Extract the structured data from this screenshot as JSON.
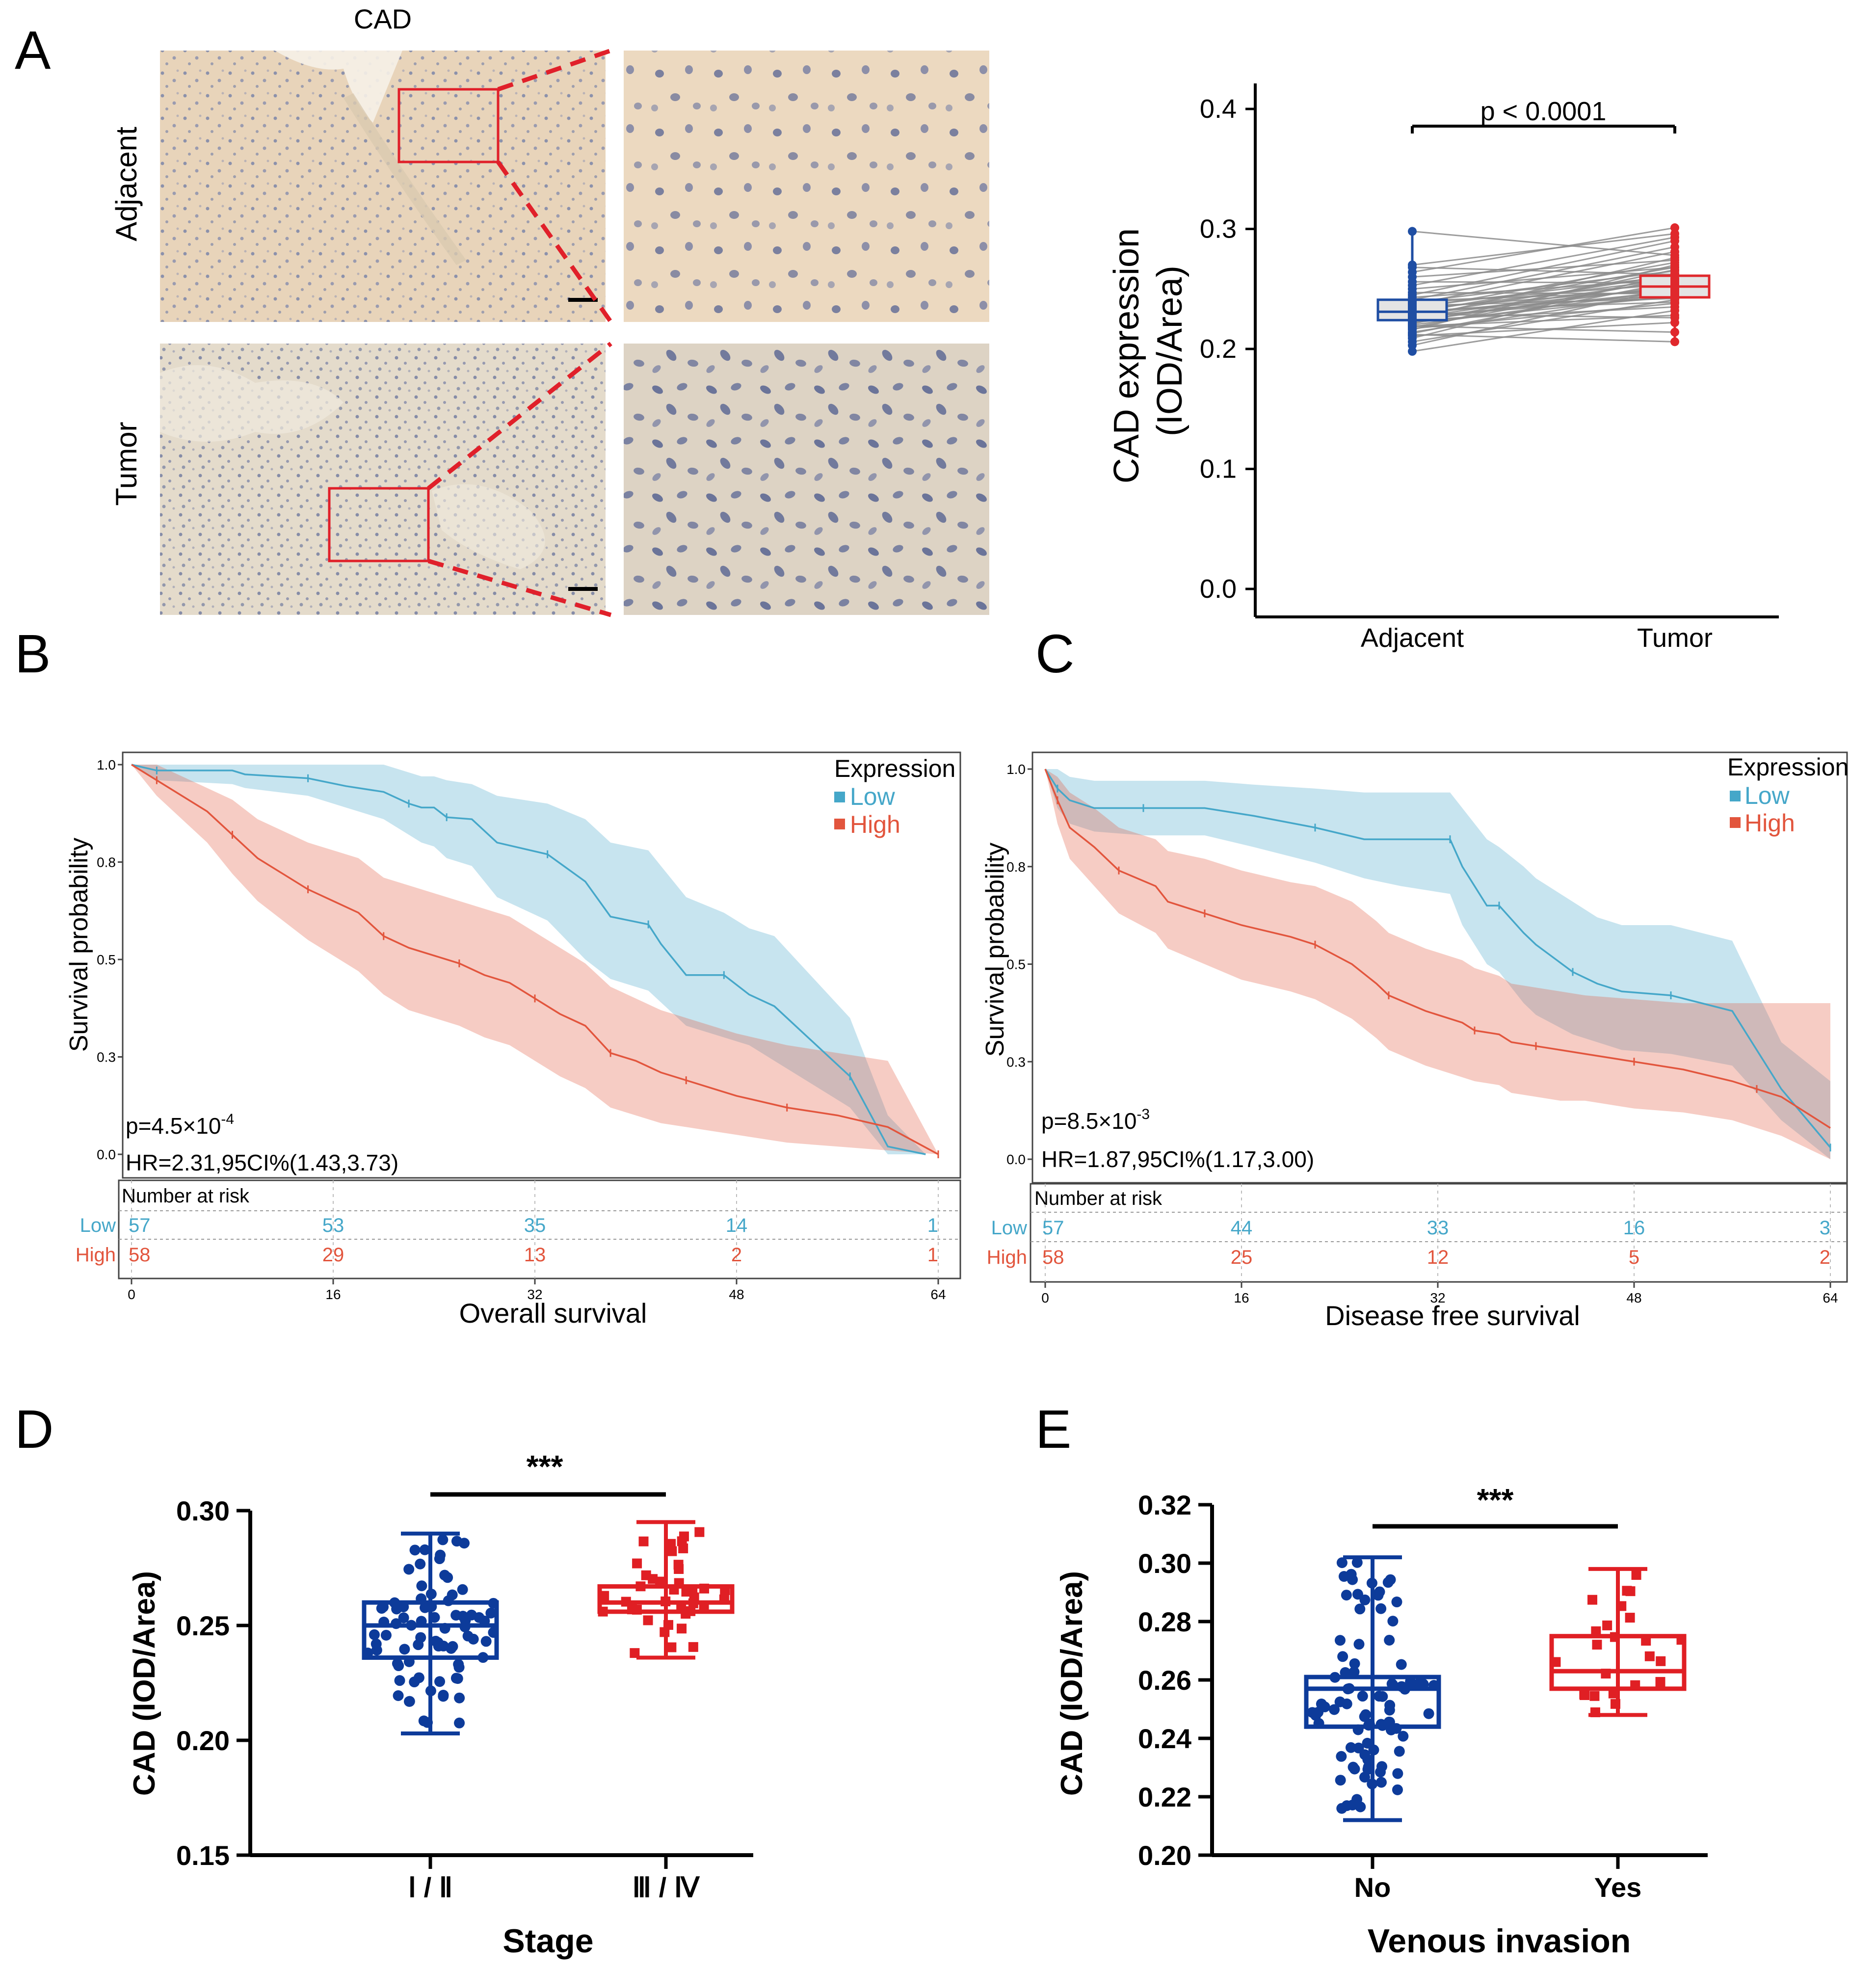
{
  "panel_labels": {
    "A": "A",
    "B": "B",
    "C": "C",
    "D": "D",
    "E": "E"
  },
  "colors": {
    "low": "#45a7c9",
    "high": "#e2553d",
    "adjacent": "#1f4ea3",
    "tumor": "#e0282c",
    "dark_blue": "#0d3b9a",
    "red": "#e01f24",
    "grey": "#8c8c8c"
  },
  "histology": {
    "title": "CAD",
    "row_labels": [
      "Adjacent",
      "Tumor"
    ],
    "images": [
      "adjacent-overview",
      "adjacent-zoom",
      "tumor-overview",
      "tumor-zoom"
    ]
  },
  "chart_data": [
    {
      "id": "A-right",
      "type": "box-paired",
      "ylabel_line1": "CAD expression",
      "ylabel_line2": "(IOD/Area)",
      "categories": [
        "Adjacent",
        "Tumor"
      ],
      "ylim": [
        0.0,
        0.4
      ],
      "yticks": [
        "0.0",
        "0.1",
        "0.2",
        "0.3",
        "0.4"
      ],
      "pvalue": "p < 0.0001",
      "boxes": [
        {
          "name": "Adjacent",
          "q1": 0.224,
          "median": 0.231,
          "q3": 0.241,
          "min": 0.198,
          "max": 0.298
        },
        {
          "name": "Tumor",
          "q1": 0.243,
          "median": 0.252,
          "q3": 0.261,
          "min": 0.206,
          "max": 0.301
        }
      ],
      "pairs": [
        [
          0.198,
          0.232
        ],
        [
          0.203,
          0.251
        ],
        [
          0.206,
          0.241
        ],
        [
          0.209,
          0.263
        ],
        [
          0.211,
          0.222
        ],
        [
          0.213,
          0.256
        ],
        [
          0.214,
          0.247
        ],
        [
          0.216,
          0.27
        ],
        [
          0.217,
          0.238
        ],
        [
          0.218,
          0.259
        ],
        [
          0.219,
          0.228
        ],
        [
          0.22,
          0.249
        ],
        [
          0.221,
          0.266
        ],
        [
          0.222,
          0.244
        ],
        [
          0.223,
          0.253
        ],
        [
          0.224,
          0.235
        ],
        [
          0.225,
          0.276
        ],
        [
          0.226,
          0.248
        ],
        [
          0.226,
          0.257
        ],
        [
          0.227,
          0.243
        ],
        [
          0.228,
          0.262
        ],
        [
          0.229,
          0.251
        ],
        [
          0.229,
          0.226
        ],
        [
          0.23,
          0.268
        ],
        [
          0.231,
          0.245
        ],
        [
          0.232,
          0.258
        ],
        [
          0.232,
          0.239
        ],
        [
          0.233,
          0.272
        ],
        [
          0.234,
          0.25
        ],
        [
          0.235,
          0.261
        ],
        [
          0.236,
          0.242
        ],
        [
          0.237,
          0.281
        ],
        [
          0.238,
          0.254
        ],
        [
          0.239,
          0.265
        ],
        [
          0.24,
          0.248
        ],
        [
          0.241,
          0.285
        ],
        [
          0.243,
          0.258
        ],
        [
          0.245,
          0.29
        ],
        [
          0.247,
          0.246
        ],
        [
          0.25,
          0.268
        ],
        [
          0.253,
          0.293
        ],
        [
          0.256,
          0.255
        ],
        [
          0.26,
          0.274
        ],
        [
          0.264,
          0.301
        ],
        [
          0.268,
          0.262
        ],
        [
          0.27,
          0.296
        ],
        [
          0.298,
          0.278
        ],
        [
          0.212,
          0.206
        ],
        [
          0.219,
          0.214
        ]
      ]
    },
    {
      "id": "B",
      "type": "km-survival",
      "xlabel": "Overall survival",
      "ylabel": "Survival probability",
      "xlim": [
        0,
        64
      ],
      "ylim": [
        0.0,
        1.0
      ],
      "xticks": [
        "0",
        "16",
        "32",
        "48",
        "64"
      ],
      "yticks": [
        "0.0",
        "0.3",
        "0.5",
        "0.8",
        "1.0"
      ],
      "legend_title": "Expression",
      "p_base": "p=4.5×10",
      "p_exp": "-4",
      "hr": "HR=2.31,95CI%(1.43,3.73)",
      "risk_title": "Number at risk",
      "series": [
        {
          "name": "Low",
          "x": [
            0,
            2,
            8,
            9,
            14,
            17,
            20,
            22,
            23,
            24,
            25,
            27,
            29,
            33,
            36,
            38,
            41,
            42,
            44,
            47,
            49,
            51,
            57,
            60,
            63
          ],
          "y": [
            1.0,
            0.985,
            0.985,
            0.975,
            0.965,
            0.945,
            0.93,
            0.9,
            0.89,
            0.89,
            0.865,
            0.86,
            0.8,
            0.77,
            0.7,
            0.61,
            0.59,
            0.54,
            0.46,
            0.46,
            0.41,
            0.38,
            0.2,
            0.02,
            0.0
          ],
          "lower": [
            1.0,
            0.96,
            0.95,
            0.94,
            0.92,
            0.89,
            0.86,
            0.82,
            0.8,
            0.79,
            0.76,
            0.74,
            0.66,
            0.6,
            0.5,
            0.45,
            0.42,
            0.39,
            0.33,
            0.3,
            0.28,
            0.24,
            0.12,
            0.0,
            0.0
          ],
          "upper": [
            1.0,
            1.0,
            1.0,
            1.0,
            1.0,
            1.0,
            1.0,
            0.98,
            0.97,
            0.97,
            0.96,
            0.95,
            0.92,
            0.9,
            0.86,
            0.8,
            0.78,
            0.74,
            0.66,
            0.62,
            0.58,
            0.56,
            0.35,
            0.1,
            0.0
          ],
          "risk": [
            "57",
            "53",
            "35",
            "14",
            "1"
          ]
        },
        {
          "name": "High",
          "x": [
            0,
            2,
            4,
            6,
            8,
            10,
            12,
            14,
            16,
            18,
            20,
            22,
            24,
            26,
            28,
            30,
            32,
            34,
            36,
            38,
            40,
            42,
            44,
            46,
            48,
            52,
            56,
            60,
            64
          ],
          "y": [
            1.0,
            0.96,
            0.92,
            0.88,
            0.82,
            0.76,
            0.72,
            0.68,
            0.65,
            0.62,
            0.56,
            0.53,
            0.51,
            0.49,
            0.46,
            0.44,
            0.4,
            0.36,
            0.33,
            0.26,
            0.24,
            0.21,
            0.19,
            0.17,
            0.15,
            0.12,
            0.1,
            0.07,
            0.0
          ],
          "lower": [
            1.0,
            0.92,
            0.86,
            0.8,
            0.72,
            0.65,
            0.6,
            0.55,
            0.51,
            0.47,
            0.41,
            0.37,
            0.35,
            0.33,
            0.3,
            0.28,
            0.24,
            0.2,
            0.17,
            0.12,
            0.1,
            0.08,
            0.07,
            0.06,
            0.05,
            0.03,
            0.02,
            0.01,
            0.0
          ],
          "upper": [
            1.0,
            1.0,
            0.97,
            0.94,
            0.91,
            0.86,
            0.83,
            0.8,
            0.78,
            0.76,
            0.71,
            0.69,
            0.67,
            0.65,
            0.63,
            0.61,
            0.57,
            0.53,
            0.49,
            0.43,
            0.4,
            0.37,
            0.35,
            0.33,
            0.31,
            0.28,
            0.26,
            0.24,
            0.0
          ],
          "risk": [
            "58",
            "29",
            "13",
            "2",
            "1"
          ]
        }
      ]
    },
    {
      "id": "C",
      "type": "km-survival",
      "xlabel": "Disease free survival",
      "ylabel": "Survival probability",
      "xlim": [
        0,
        64
      ],
      "ylim": [
        0.0,
        1.0
      ],
      "xticks": [
        "0",
        "16",
        "32",
        "48",
        "64"
      ],
      "yticks": [
        "0.0",
        "0.3",
        "0.5",
        "0.8",
        "1.0"
      ],
      "legend_title": "Expression",
      "p_base": "p=8.5×10",
      "p_exp": "-3",
      "hr": "HR=1.87,95CI%(1.17,3.00)",
      "risk_title": "Number at risk",
      "series": [
        {
          "name": "Low",
          "x": [
            0,
            1,
            2,
            4,
            8,
            13,
            17,
            22,
            26,
            29,
            33,
            34,
            36,
            37,
            39,
            40,
            43,
            45,
            47,
            51,
            56,
            60,
            64
          ],
          "y": [
            1.0,
            0.95,
            0.92,
            0.9,
            0.9,
            0.9,
            0.88,
            0.85,
            0.82,
            0.82,
            0.82,
            0.75,
            0.65,
            0.65,
            0.58,
            0.55,
            0.48,
            0.45,
            0.43,
            0.42,
            0.38,
            0.18,
            0.03
          ],
          "lower": [
            1.0,
            0.9,
            0.86,
            0.84,
            0.83,
            0.83,
            0.8,
            0.76,
            0.72,
            0.7,
            0.68,
            0.6,
            0.5,
            0.48,
            0.4,
            0.37,
            0.32,
            0.3,
            0.28,
            0.27,
            0.24,
            0.1,
            0.0
          ],
          "upper": [
            1.0,
            1.0,
            0.98,
            0.97,
            0.97,
            0.97,
            0.96,
            0.95,
            0.94,
            0.94,
            0.94,
            0.9,
            0.82,
            0.8,
            0.75,
            0.72,
            0.66,
            0.62,
            0.6,
            0.6,
            0.56,
            0.3,
            0.2
          ],
          "risk": [
            "57",
            "44",
            "33",
            "16",
            "3"
          ]
        },
        {
          "name": "High",
          "x": [
            0,
            1,
            2,
            4,
            6,
            9,
            10,
            13,
            16,
            20,
            22,
            25,
            27,
            28,
            31,
            34,
            35,
            37,
            38,
            40,
            42,
            44,
            48,
            52,
            56,
            58,
            60,
            64
          ],
          "y": [
            1.0,
            0.92,
            0.85,
            0.8,
            0.74,
            0.7,
            0.66,
            0.63,
            0.6,
            0.57,
            0.55,
            0.5,
            0.45,
            0.42,
            0.38,
            0.35,
            0.33,
            0.32,
            0.3,
            0.29,
            0.28,
            0.27,
            0.25,
            0.23,
            0.2,
            0.18,
            0.16,
            0.08
          ],
          "lower": [
            1.0,
            0.86,
            0.77,
            0.7,
            0.63,
            0.58,
            0.54,
            0.5,
            0.46,
            0.43,
            0.41,
            0.36,
            0.31,
            0.28,
            0.24,
            0.21,
            0.2,
            0.19,
            0.17,
            0.16,
            0.15,
            0.15,
            0.13,
            0.12,
            0.1,
            0.08,
            0.06,
            0.0
          ],
          "upper": [
            1.0,
            0.98,
            0.94,
            0.9,
            0.85,
            0.82,
            0.79,
            0.77,
            0.74,
            0.71,
            0.7,
            0.66,
            0.61,
            0.58,
            0.54,
            0.51,
            0.49,
            0.47,
            0.45,
            0.44,
            0.43,
            0.42,
            0.41,
            0.4,
            0.4,
            0.4,
            0.4,
            0.4
          ],
          "risk": [
            "58",
            "25",
            "12",
            "5",
            "2"
          ]
        }
      ]
    },
    {
      "id": "D",
      "type": "box-dots",
      "xlabel": "Stage",
      "ylabel": "CAD (IOD/Area)",
      "categories": [
        "Ⅰ / Ⅱ",
        "Ⅲ / Ⅳ"
      ],
      "ylim": [
        0.15,
        0.3
      ],
      "yticks": [
        "0.15",
        "0.20",
        "0.25",
        "0.30"
      ],
      "significance": "***",
      "boxes": [
        {
          "name": "Ⅰ / Ⅱ",
          "q1": 0.236,
          "median": 0.25,
          "q3": 0.26,
          "min": 0.203,
          "max": 0.29,
          "n": 80
        },
        {
          "name": "Ⅲ / Ⅳ",
          "q1": 0.256,
          "median": 0.26,
          "q3": 0.267,
          "min": 0.236,
          "max": 0.295,
          "n": 40
        }
      ]
    },
    {
      "id": "E",
      "type": "box-dots",
      "xlabel": "Venous invasion",
      "ylabel": "CAD (IOD/Area)",
      "categories": [
        "No",
        "Yes"
      ],
      "ylim": [
        0.2,
        0.32
      ],
      "yticks": [
        "0.20",
        "0.22",
        "0.24",
        "0.26",
        "0.28",
        "0.30",
        "0.32"
      ],
      "significance": "***",
      "boxes": [
        {
          "name": "No",
          "q1": 0.244,
          "median": 0.257,
          "q3": 0.261,
          "min": 0.212,
          "max": 0.302,
          "n": 90
        },
        {
          "name": "Yes",
          "q1": 0.257,
          "median": 0.263,
          "q3": 0.275,
          "min": 0.248,
          "max": 0.298,
          "n": 24
        }
      ]
    }
  ]
}
